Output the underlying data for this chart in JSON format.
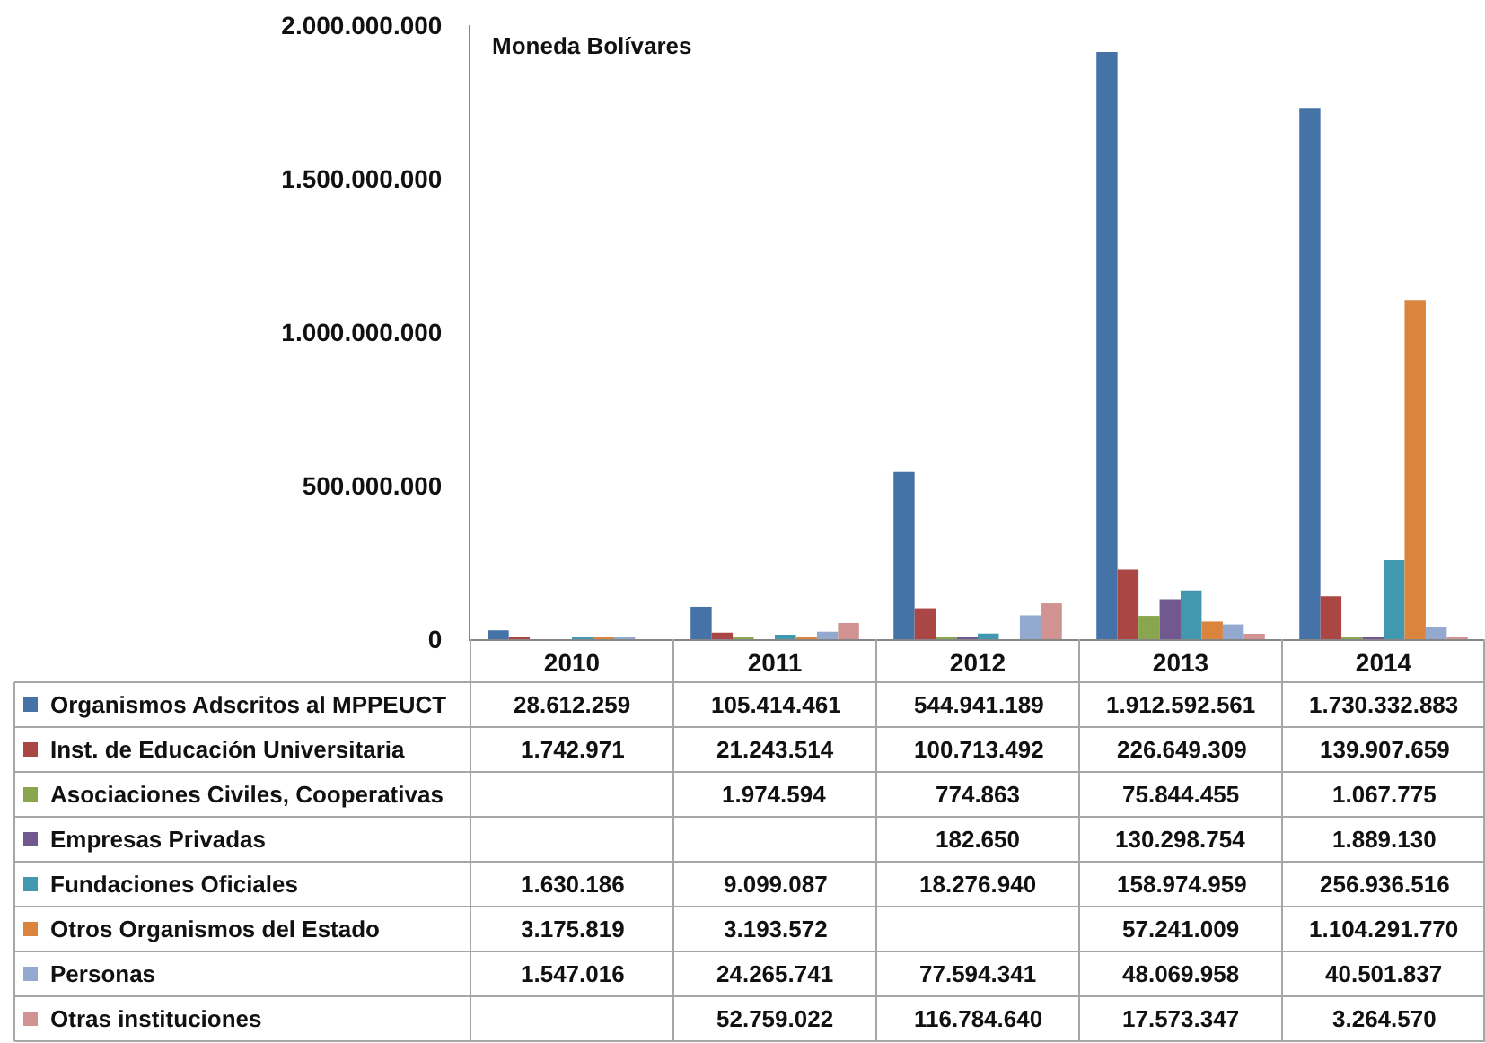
{
  "chart_data": {
    "type": "bar",
    "annotations": [
      "Moneda Bolívares"
    ],
    "categories": [
      "2010",
      "2011",
      "2012",
      "2013",
      "2014"
    ],
    "series": [
      {
        "name": "Organismos Adscritos al MPPEUCT",
        "color": "#4572a7",
        "values": [
          28612259,
          105414461,
          544941189,
          1912592561,
          1730332883
        ],
        "value_labels": [
          "28.612.259",
          "105.414.461",
          "544.941.189",
          "1.912.592.561",
          "1.730.332.883"
        ]
      },
      {
        "name": "Inst. de Educación Universitaria",
        "color": "#aa4643",
        "values": [
          1742971,
          21243514,
          100713492,
          226649309,
          139907659
        ],
        "value_labels": [
          "1.742.971",
          "21.243.514",
          "100.713.492",
          "226.649.309",
          "139.907.659"
        ]
      },
      {
        "name": "Asociaciones Civiles, Cooperativas",
        "color": "#89a54e",
        "values": [
          null,
          1974594,
          774863,
          75844455,
          1067775
        ],
        "value_labels": [
          null,
          "1.974.594",
          "774.863",
          "75.844.455",
          "1.067.775"
        ]
      },
      {
        "name": "Empresas Privadas",
        "color": "#71588f",
        "values": [
          null,
          null,
          182650,
          130298754,
          1889130
        ],
        "value_labels": [
          null,
          null,
          "182.650",
          "130.298.754",
          "1.889.130"
        ]
      },
      {
        "name": "Fundaciones Oficiales",
        "color": "#4198af",
        "values": [
          1630186,
          9099087,
          18276940,
          158974959,
          256936516
        ],
        "value_labels": [
          "1.630.186",
          "9.099.087",
          "18.276.940",
          "158.974.959",
          "256.936.516"
        ]
      },
      {
        "name": "Otros Organismos del Estado",
        "color": "#db843d",
        "values": [
          3175819,
          3193572,
          null,
          57241009,
          1104291770
        ],
        "value_labels": [
          "3.175.819",
          "3.193.572",
          null,
          "57.241.009",
          "1.104.291.770"
        ]
      },
      {
        "name": "Personas",
        "color": "#93a9cf",
        "values": [
          1547016,
          24265741,
          77594341,
          48069958,
          40501837
        ],
        "value_labels": [
          "1.547.016",
          "24.265.741",
          "77.594.341",
          "48.069.958",
          "40.501.837"
        ]
      },
      {
        "name": "Otras instituciones",
        "color": "#d19392",
        "values": [
          null,
          52759022,
          116784640,
          17573347,
          3264570
        ],
        "value_labels": [
          null,
          "52.759.022",
          "116.784.640",
          "17.573.347",
          "3.264.570"
        ]
      }
    ],
    "ylim": [
      0,
      2000000000
    ],
    "yticks": [
      0,
      {
        "value": 500000000,
        "label": "500.000.000"
      },
      {
        "value": 1000000000,
        "label": "1.000.000.000"
      },
      {
        "value": 1500000000,
        "label": "1.500.000.000"
      },
      {
        "value": 2000000000,
        "label": "2.000.000.000"
      }
    ],
    "legend": "bottom"
  }
}
